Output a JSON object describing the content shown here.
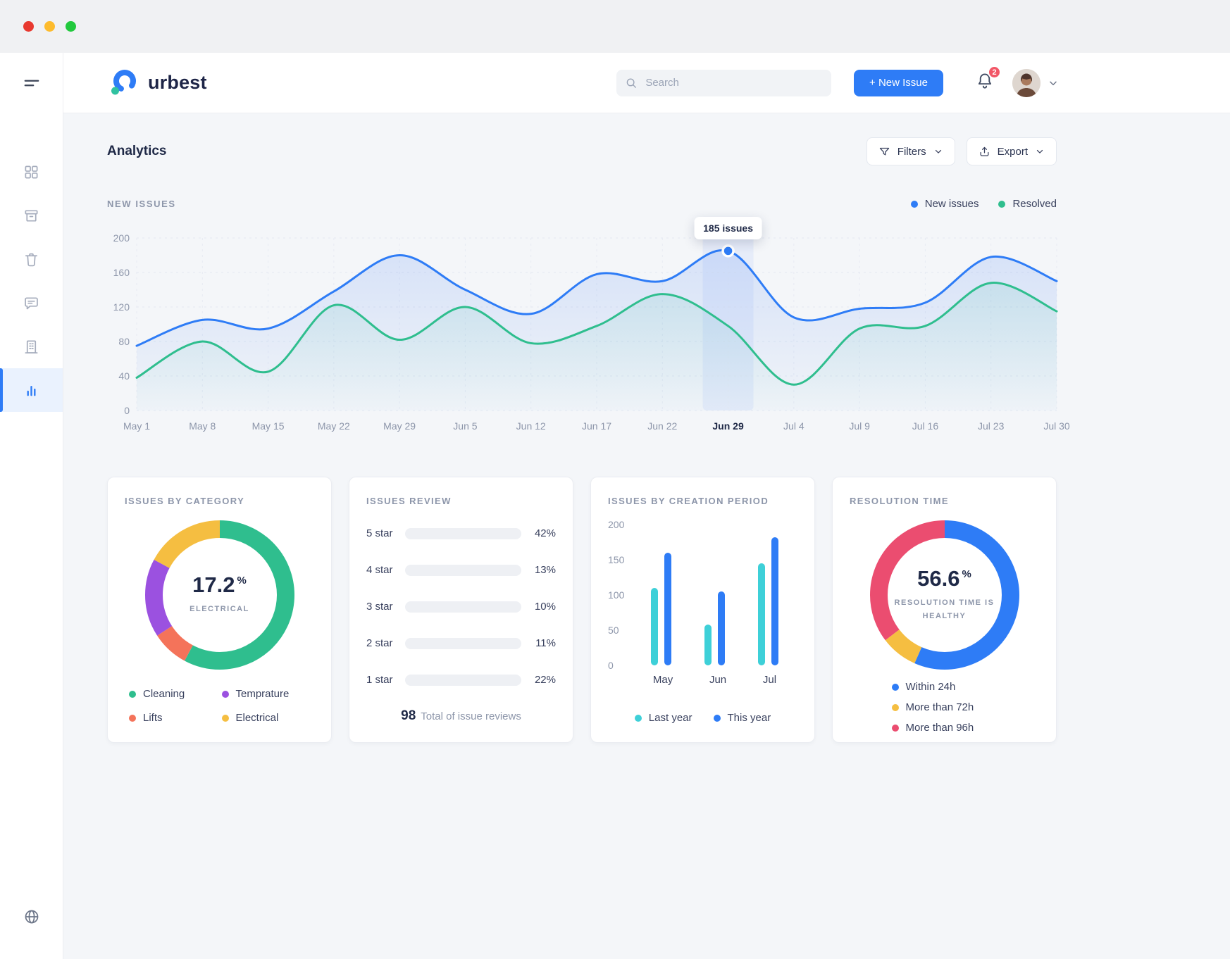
{
  "theme": {
    "accent_blue": "#2e7cf6",
    "green": "#2fbe8e",
    "yellow": "#f5be41",
    "purple": "#9b51e0",
    "orange": "#f4735a",
    "pink": "#eb4d70",
    "cyan": "#3ed0d8",
    "text_dark": "#1f2947",
    "text_muted": "#8d96aa",
    "badge_red": "#f25767"
  },
  "window": {
    "controls": [
      "close",
      "minimize",
      "zoom"
    ]
  },
  "header": {
    "brand": "urbest",
    "search_placeholder": "Search",
    "new_issue_label": "+ New Issue",
    "notification_count": "2"
  },
  "sidebar": {
    "icons": [
      "menu-icon",
      "dashboard-grid-icon",
      "archive-icon",
      "trash-icon",
      "comments-icon",
      "building-icon",
      "analytics-icon",
      "globe-icon"
    ],
    "active_item": "analytics"
  },
  "page": {
    "title": "Analytics",
    "filters_label": "Filters",
    "export_label": "Export"
  },
  "chart_data": [
    {
      "id": "new_issues",
      "type": "line",
      "title": "NEW ISSUES",
      "x": [
        "May 1",
        "May 8",
        "May 15",
        "May 22",
        "May 29",
        "Jun 5",
        "Jun 12",
        "Jun 17",
        "Jun 22",
        "Jun 29",
        "Jul 4",
        "Jul 9",
        "Jul 16",
        "Jul 23",
        "Jul 30"
      ],
      "series": [
        {
          "name": "New issues",
          "color": "#2e7cf6",
          "values": [
            75,
            105,
            95,
            138,
            180,
            140,
            112,
            158,
            150,
            185,
            108,
            118,
            125,
            178,
            150
          ]
        },
        {
          "name": "Resolved",
          "color": "#2fbe8e",
          "values": [
            38,
            80,
            45,
            122,
            82,
            120,
            78,
            98,
            135,
            98,
            30,
            95,
            98,
            148,
            115
          ]
        }
      ],
      "ylim": [
        0,
        200
      ],
      "yticks": [
        0,
        40,
        80,
        120,
        160,
        200
      ],
      "highlight": {
        "x_index": 9,
        "x_label": "Jun 29",
        "series": "New issues",
        "value": 185,
        "label": "185 issues"
      },
      "legend_position": "top-right",
      "grid": true
    },
    {
      "id": "issues_by_category",
      "type": "pie",
      "title": "ISSUES BY CATEGORY",
      "slices": [
        {
          "label": "Cleaning",
          "value": 57.8,
          "color": "#2fbe8e"
        },
        {
          "label": "Lifts",
          "value": 8,
          "color": "#f4735a"
        },
        {
          "label": "Temprature",
          "value": 17,
          "color": "#9b51e0"
        },
        {
          "label": "Electrical",
          "value": 17.2,
          "color": "#f5be41"
        }
      ],
      "center_value": "17.2",
      "center_unit": "%",
      "center_label": "ELECTRICAL"
    },
    {
      "id": "issues_review",
      "type": "bar",
      "title": "ISSUES REVIEW",
      "categories": [
        "5 star",
        "4 star",
        "3 star",
        "2 star",
        "1 star"
      ],
      "values": [
        42,
        13,
        10,
        11,
        22
      ],
      "values_display": [
        "42%",
        "13%",
        "10%",
        "11%",
        "22%"
      ],
      "total_value": "98",
      "total_label": "Total of issue reviews"
    },
    {
      "id": "issues_by_creation_period",
      "type": "bar",
      "title": "ISSUES BY CREATION PERIOD",
      "categories": [
        "May",
        "Jun",
        "Jul"
      ],
      "series": [
        {
          "name": "Last year",
          "color": "#3ed0d8",
          "values": [
            110,
            58,
            145
          ]
        },
        {
          "name": "This year",
          "color": "#2e7cf6",
          "values": [
            160,
            105,
            182
          ]
        }
      ],
      "ylim": [
        0,
        200
      ],
      "yticks": [
        0,
        50,
        100,
        150,
        200
      ],
      "legend_position": "bottom"
    },
    {
      "id": "resolution_time",
      "type": "pie",
      "title": "RESOLUTION TIME",
      "slices": [
        {
          "label": "Within 24h",
          "value": 56.6,
          "color": "#2e7cf6"
        },
        {
          "label": "More than 72h",
          "value": 8,
          "color": "#f5be41"
        },
        {
          "label": "More than 96h",
          "value": 35.4,
          "color": "#eb4d70"
        }
      ],
      "center_value": "56.6",
      "center_unit": "%",
      "center_label": "RESOLUTION TIME IS HEALTHY"
    }
  ]
}
